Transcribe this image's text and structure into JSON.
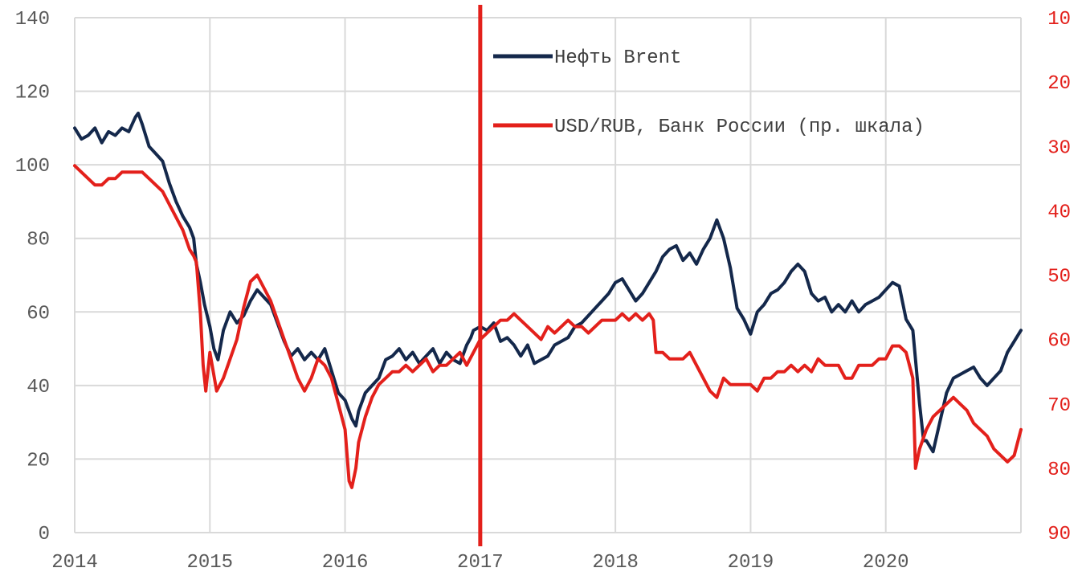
{
  "chart_data": {
    "type": "line",
    "grid": true,
    "legend_position": "top-right",
    "xlabels": [
      "2014",
      "2015",
      "2016",
      "2017",
      "2018",
      "2019",
      "2020"
    ],
    "xlim": [
      2014,
      2021
    ],
    "y_left": {
      "lim": [
        0,
        140
      ],
      "ticks": [
        0,
        20,
        40,
        60,
        80,
        100,
        120,
        140
      ]
    },
    "y_right": {
      "lim": [
        90,
        10
      ],
      "inverted": true,
      "ticks": [
        10,
        20,
        30,
        40,
        50,
        60,
        70,
        80,
        90
      ]
    },
    "vertical_marker": {
      "x": 2017.0,
      "color": "#e3201b"
    },
    "series": [
      {
        "name": "Нефть Brent",
        "axis": "left",
        "color": "#14284b",
        "x": [
          2014.0,
          2014.05,
          2014.1,
          2014.15,
          2014.2,
          2014.25,
          2014.3,
          2014.35,
          2014.4,
          2014.45,
          2014.47,
          2014.5,
          2014.55,
          2014.6,
          2014.65,
          2014.7,
          2014.75,
          2014.8,
          2014.85,
          2014.88,
          2014.9,
          2014.93,
          2014.96,
          2015.0,
          2015.03,
          2015.06,
          2015.1,
          2015.15,
          2015.2,
          2015.25,
          2015.3,
          2015.35,
          2015.4,
          2015.45,
          2015.5,
          2015.55,
          2015.6,
          2015.65,
          2015.7,
          2015.75,
          2015.8,
          2015.85,
          2015.9,
          2015.95,
          2016.0,
          2016.05,
          2016.08,
          2016.1,
          2016.15,
          2016.2,
          2016.25,
          2016.3,
          2016.35,
          2016.4,
          2016.45,
          2016.5,
          2016.55,
          2016.6,
          2016.65,
          2016.7,
          2016.75,
          2016.8,
          2016.85,
          2016.9,
          2016.93,
          2016.95,
          2017.0,
          2017.05,
          2017.1,
          2017.15,
          2017.2,
          2017.25,
          2017.3,
          2017.35,
          2017.4,
          2017.45,
          2017.5,
          2017.55,
          2017.6,
          2017.65,
          2017.7,
          2017.75,
          2017.8,
          2017.85,
          2017.9,
          2017.95,
          2018.0,
          2018.05,
          2018.1,
          2018.15,
          2018.2,
          2018.25,
          2018.3,
          2018.35,
          2018.4,
          2018.45,
          2018.5,
          2018.55,
          2018.6,
          2018.65,
          2018.7,
          2018.75,
          2018.8,
          2018.85,
          2018.9,
          2018.95,
          2019.0,
          2019.05,
          2019.1,
          2019.15,
          2019.2,
          2019.25,
          2019.3,
          2019.35,
          2019.4,
          2019.45,
          2019.5,
          2019.55,
          2019.6,
          2019.65,
          2019.7,
          2019.75,
          2019.8,
          2019.85,
          2019.9,
          2019.95,
          2020.0,
          2020.05,
          2020.1,
          2020.15,
          2020.2,
          2020.25,
          2020.28,
          2020.3,
          2020.35,
          2020.4,
          2020.45,
          2020.5,
          2020.55,
          2020.6,
          2020.65,
          2020.7,
          2020.75,
          2020.8,
          2020.85,
          2020.9,
          2020.95,
          2021.0
        ],
        "values": [
          110,
          107,
          108,
          110,
          106,
          109,
          108,
          110,
          109,
          113,
          114,
          111,
          105,
          103,
          101,
          95,
          90,
          86,
          83,
          80,
          73,
          68,
          62,
          56,
          50,
          47,
          55,
          60,
          57,
          59,
          63,
          66,
          64,
          62,
          57,
          52,
          48,
          50,
          47,
          49,
          47,
          50,
          44,
          38,
          36,
          31,
          29,
          33,
          38,
          40,
          42,
          47,
          48,
          50,
          47,
          49,
          46,
          48,
          50,
          46,
          49,
          47,
          46,
          51,
          53,
          55,
          56,
          55,
          57,
          52,
          53,
          51,
          48,
          51,
          46,
          47,
          48,
          51,
          52,
          53,
          56,
          57,
          59,
          61,
          63,
          65,
          68,
          69,
          66,
          63,
          65,
          68,
          71,
          75,
          77,
          78,
          74,
          76,
          73,
          77,
          80,
          85,
          80,
          72,
          61,
          58,
          54,
          60,
          62,
          65,
          66,
          68,
          71,
          73,
          71,
          65,
          63,
          64,
          60,
          62,
          60,
          63,
          60,
          62,
          63,
          64,
          66,
          68,
          67,
          58,
          55,
          35,
          25,
          25,
          22,
          30,
          38,
          42,
          43,
          44,
          45,
          42,
          40,
          42,
          44,
          49,
          52,
          55
        ]
      },
      {
        "name": "USD/RUB, Банк России (пр. шкала)",
        "axis": "right",
        "color": "#e3201b",
        "x": [
          2014.0,
          2014.05,
          2014.1,
          2014.15,
          2014.2,
          2014.25,
          2014.3,
          2014.35,
          2014.4,
          2014.45,
          2014.5,
          2014.55,
          2014.6,
          2014.65,
          2014.7,
          2014.75,
          2014.8,
          2014.85,
          2014.88,
          2014.9,
          2014.93,
          2014.95,
          2014.97,
          2015.0,
          2015.05,
          2015.1,
          2015.15,
          2015.2,
          2015.25,
          2015.3,
          2015.35,
          2015.4,
          2015.45,
          2015.5,
          2015.55,
          2015.6,
          2015.65,
          2015.7,
          2015.75,
          2015.8,
          2015.85,
          2015.9,
          2015.95,
          2016.0,
          2016.03,
          2016.05,
          2016.08,
          2016.1,
          2016.15,
          2016.2,
          2016.25,
          2016.3,
          2016.35,
          2016.4,
          2016.45,
          2016.5,
          2016.55,
          2016.6,
          2016.65,
          2016.7,
          2016.75,
          2016.8,
          2016.85,
          2016.9,
          2016.95,
          2017.0,
          2017.05,
          2017.1,
          2017.15,
          2017.2,
          2017.25,
          2017.3,
          2017.35,
          2017.4,
          2017.45,
          2017.5,
          2017.55,
          2017.6,
          2017.65,
          2017.7,
          2017.75,
          2017.8,
          2017.85,
          2017.9,
          2017.95,
          2018.0,
          2018.05,
          2018.1,
          2018.15,
          2018.2,
          2018.25,
          2018.28,
          2018.3,
          2018.35,
          2018.4,
          2018.45,
          2018.5,
          2018.55,
          2018.6,
          2018.65,
          2018.7,
          2018.75,
          2018.8,
          2018.85,
          2018.9,
          2018.95,
          2019.0,
          2019.05,
          2019.1,
          2019.15,
          2019.2,
          2019.25,
          2019.3,
          2019.35,
          2019.4,
          2019.45,
          2019.5,
          2019.55,
          2019.6,
          2019.65,
          2019.7,
          2019.75,
          2019.8,
          2019.85,
          2019.9,
          2019.95,
          2020.0,
          2020.05,
          2020.1,
          2020.15,
          2020.2,
          2020.22,
          2020.25,
          2020.3,
          2020.35,
          2020.4,
          2020.45,
          2020.5,
          2020.55,
          2020.6,
          2020.65,
          2020.7,
          2020.75,
          2020.8,
          2020.85,
          2020.9,
          2020.95,
          2021.0
        ],
        "values": [
          33,
          34,
          35,
          36,
          36,
          35,
          35,
          34,
          34,
          34,
          34,
          35,
          36,
          37,
          39,
          41,
          43,
          46,
          47,
          48,
          56,
          64,
          68,
          62,
          68,
          66,
          63,
          60,
          55,
          51,
          50,
          52,
          54,
          57,
          60,
          63,
          66,
          68,
          66,
          63,
          64,
          66,
          70,
          74,
          82,
          83,
          80,
          76,
          72,
          69,
          67,
          66,
          65,
          65,
          64,
          65,
          64,
          63,
          65,
          64,
          64,
          63,
          62,
          64,
          62,
          60,
          59,
          58,
          57,
          57,
          56,
          57,
          58,
          59,
          60,
          58,
          59,
          58,
          57,
          58,
          58,
          59,
          58,
          57,
          57,
          57,
          56,
          57,
          56,
          57,
          56,
          57,
          62,
          62,
          63,
          63,
          63,
          62,
          64,
          66,
          68,
          69,
          66,
          67,
          67,
          67,
          67,
          68,
          66,
          66,
          65,
          65,
          64,
          65,
          64,
          65,
          63,
          64,
          64,
          64,
          66,
          66,
          64,
          64,
          64,
          63,
          63,
          61,
          61,
          62,
          66,
          80,
          77,
          74,
          72,
          71,
          70,
          69,
          70,
          71,
          73,
          74,
          75,
          77,
          78,
          79,
          78,
          74
        ]
      }
    ]
  }
}
